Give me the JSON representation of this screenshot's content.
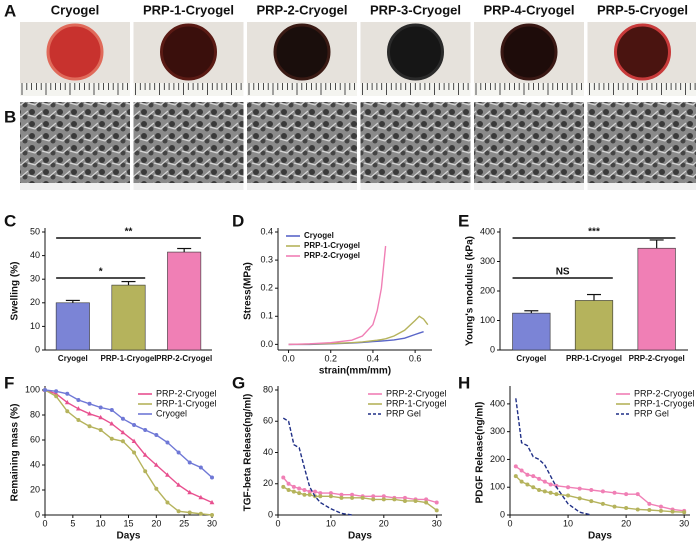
{
  "panels": [
    "A",
    "B",
    "C",
    "D",
    "E",
    "F",
    "G",
    "H"
  ],
  "photo_labels": [
    "Cryogel",
    "PRP-1-Cryogel",
    "PRP-2-Cryogel",
    "PRP-3-Cryogel",
    "PRP-4-Cryogel",
    "PRP-5-Cryogel"
  ],
  "chart_data": [
    {
      "type": "bar",
      "ylabel": "Swelling (%)",
      "categories": [
        "Cryogel",
        "PRP-1-Cryogel",
        "PRP-2-Cryogel"
      ],
      "values": [
        20,
        27.5,
        41.5
      ],
      "errors": [
        1,
        1.5,
        1.5
      ],
      "colors": [
        "#7b84d6",
        "#b5b35c",
        "#f07fb5"
      ],
      "ylim": [
        0,
        50
      ],
      "yticks": [
        0,
        10,
        20,
        30,
        40,
        50
      ],
      "annotations": [
        "*",
        "**"
      ]
    },
    {
      "type": "line",
      "xlabel": "strain(mm/mm)",
      "ylabel": "Stress(MPa)",
      "x": [
        0,
        0.1,
        0.2,
        0.3,
        0.35,
        0.4,
        0.42,
        0.44,
        0.46,
        0.5,
        0.55,
        0.6,
        0.62,
        0.64,
        0.66
      ],
      "series": [
        {
          "name": "Cryogel",
          "color": "#5a66c8",
          "values": [
            0,
            0,
            0.002,
            0.005,
            0.007,
            0.01,
            0.011,
            0.012,
            0.013,
            0.016,
            0.022,
            0.035,
            0.04,
            0.045,
            null
          ]
        },
        {
          "name": "PRP-1-Cryogel",
          "color": "#b5b35c",
          "values": [
            0,
            0.001,
            0.003,
            0.006,
            0.009,
            0.013,
            0.015,
            0.017,
            0.02,
            0.03,
            0.05,
            0.085,
            0.1,
            0.09,
            0.07
          ]
        },
        {
          "name": "PRP-2-Cryogel",
          "color": "#f07fb5",
          "values": [
            0,
            0.002,
            0.006,
            0.015,
            0.03,
            0.07,
            0.12,
            0.2,
            0.35,
            null,
            null,
            null,
            null,
            null,
            null
          ]
        }
      ],
      "xlim": [
        -0.05,
        0.68
      ],
      "xticks": [
        {
          "value": 0,
          "label": "0.0"
        },
        0.2,
        0.4,
        0.6
      ],
      "ylim": [
        -0.02,
        0.4
      ],
      "yticks": [
        {
          "value": 0,
          "label": "0.0"
        },
        0.1,
        0.2,
        0.3,
        0.4
      ],
      "legend": "upper left"
    },
    {
      "type": "bar",
      "ylabel": "Young's modulus (kPa)",
      "categories": [
        "Cryogel",
        "PRP-1-Cryogel",
        "PRP-2-Cryogel"
      ],
      "values": [
        125,
        168,
        345
      ],
      "errors": [
        8,
        20,
        28
      ],
      "colors": [
        "#7b84d6",
        "#b5b35c",
        "#f07fb5"
      ],
      "ylim": [
        0,
        400
      ],
      "yticks": [
        0,
        100,
        200,
        300,
        400
      ],
      "annotations": [
        "NS",
        "***"
      ]
    },
    {
      "type": "line",
      "xlabel": "Days",
      "ylabel": "Remaining mass (%)",
      "x": [
        0,
        2,
        4,
        6,
        8,
        10,
        12,
        14,
        16,
        18,
        20,
        22,
        24,
        26,
        28,
        30
      ],
      "series": [
        {
          "name": "PRP-2-Cryogel",
          "color": "#e8508f",
          "marker": "triangle",
          "values": [
            100,
            97,
            90,
            85,
            81,
            78,
            73,
            66,
            59,
            48,
            40,
            32,
            24,
            18,
            14,
            10
          ]
        },
        {
          "name": "PRP-1-Cryogel",
          "color": "#b5b35c",
          "marker": "circle",
          "values": [
            100,
            95,
            83,
            76,
            71,
            68,
            61,
            59,
            50,
            35,
            21,
            10,
            3,
            2,
            1,
            0
          ]
        },
        {
          "name": "Cryogel",
          "color": "#6f78d6",
          "marker": "circle",
          "values": [
            100,
            99,
            97,
            92,
            89,
            86,
            84,
            77,
            72,
            68,
            64,
            58,
            50,
            42,
            38,
            30
          ]
        }
      ],
      "xlim": [
        0,
        30
      ],
      "xticks": [
        0,
        5,
        10,
        15,
        20,
        25,
        30
      ],
      "ylim": [
        0,
        100
      ],
      "yticks": [
        0,
        20,
        40,
        60,
        80,
        100
      ],
      "legend": "upper right"
    },
    {
      "type": "line",
      "xlabel": "Days",
      "ylabel": "TGF-beta Release(ng/ml)",
      "series": [
        {
          "name": "PRP-2-Cryogel",
          "color": "#f07fb5",
          "marker": "circle",
          "x": [
            1,
            2,
            3,
            4,
            5,
            6,
            7,
            8,
            10,
            12,
            14,
            16,
            18,
            20,
            22,
            24,
            26,
            28,
            30
          ],
          "values": [
            24,
            20,
            18,
            17,
            16,
            15,
            15,
            14,
            14,
            13,
            13,
            12,
            12,
            12,
            11,
            11,
            10,
            10,
            8
          ]
        },
        {
          "name": "PRP-1-Cryogel",
          "color": "#b5b35c",
          "marker": "circle",
          "x": [
            1,
            2,
            3,
            4,
            5,
            6,
            7,
            8,
            10,
            12,
            14,
            16,
            18,
            20,
            22,
            24,
            26,
            28,
            30
          ],
          "values": [
            18,
            16,
            15,
            14,
            13,
            13,
            12,
            12,
            12,
            11,
            11,
            11,
            10,
            10,
            10,
            9,
            9,
            8,
            3
          ]
        },
        {
          "name": "PRP Gel",
          "color": "#1f2f86",
          "style": "dashed",
          "x": [
            1,
            2,
            3,
            4,
            5,
            6,
            7,
            8,
            10,
            12,
            14
          ],
          "values": [
            62,
            60,
            45,
            43,
            30,
            18,
            12,
            8,
            4,
            1,
            0
          ]
        }
      ],
      "xlim": [
        0,
        31
      ],
      "xticks": [
        0,
        10,
        20,
        30
      ],
      "ylim": [
        0,
        80
      ],
      "yticks": [
        0,
        20,
        40,
        60,
        80
      ],
      "legend": "upper right"
    },
    {
      "type": "line",
      "xlabel": "Days",
      "ylabel": "PDGF Release(ng/ml)",
      "series": [
        {
          "name": "PRP-2-Cryogel",
          "color": "#f07fb5",
          "marker": "circle",
          "x": [
            1,
            2,
            3,
            4,
            5,
            6,
            7,
            8,
            10,
            12,
            14,
            16,
            18,
            20,
            22,
            24,
            26,
            28,
            30
          ],
          "values": [
            175,
            160,
            145,
            140,
            130,
            120,
            110,
            105,
            100,
            95,
            90,
            85,
            80,
            75,
            75,
            40,
            30,
            20,
            15
          ]
        },
        {
          "name": "PRP-1-Cryogel",
          "color": "#b5b35c",
          "marker": "circle",
          "x": [
            1,
            2,
            3,
            4,
            5,
            6,
            7,
            8,
            10,
            12,
            14,
            16,
            18,
            20,
            22,
            24,
            26,
            28,
            30
          ],
          "values": [
            140,
            120,
            110,
            100,
            90,
            85,
            80,
            75,
            70,
            60,
            50,
            40,
            30,
            25,
            20,
            18,
            15,
            12,
            10
          ]
        },
        {
          "name": "PRP Gel",
          "color": "#1f2f86",
          "style": "dashed",
          "x": [
            1,
            2,
            3,
            4,
            5,
            6,
            7,
            8,
            10,
            12,
            14
          ],
          "values": [
            420,
            260,
            250,
            210,
            200,
            180,
            140,
            100,
            40,
            10,
            0
          ]
        }
      ],
      "xlim": [
        0,
        31
      ],
      "xticks": [
        0,
        10,
        20,
        30
      ],
      "ylim": [
        0,
        450
      ],
      "yticks": [
        0,
        100,
        200,
        300,
        400
      ],
      "legend": "upper right"
    }
  ]
}
